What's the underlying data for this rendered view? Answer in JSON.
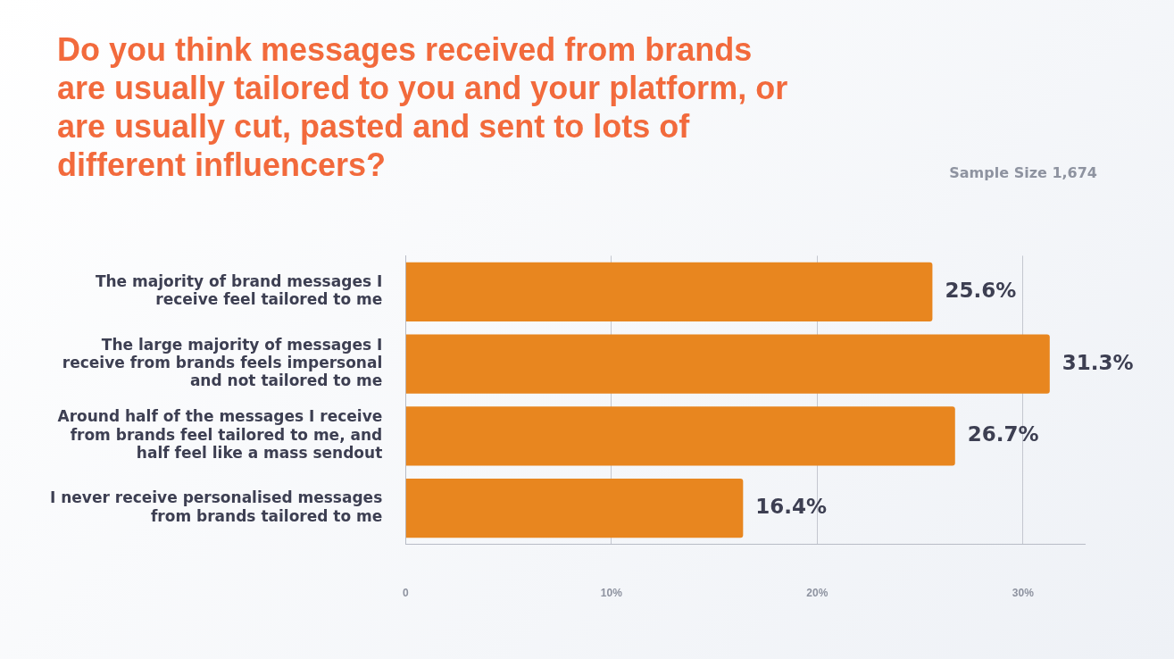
{
  "chart_data": {
    "type": "bar",
    "orientation": "horizontal",
    "title": "Do you think messages received from brands are usually tailored to you and your platform, or are usually cut, pasted and sent to lots of different influencers?",
    "annotations": [
      "Sample Size 1,674"
    ],
    "categories": [
      "The majority of brand messages I receive feel tailored to me",
      "The large majority of messages I receive from brands feels impersonal and not tailored to me",
      "Around half of the messages I receive from brands feel tailored to me, and half feel like a mass sendout",
      "I never receive personalised messages from brands tailored to me"
    ],
    "values": [
      25.6,
      31.3,
      26.7,
      16.4
    ],
    "value_labels": [
      "25.6%",
      "31.3%",
      "26.7%",
      "16.4%"
    ],
    "color": "#e8861f",
    "xlim": [
      0,
      33
    ],
    "xticks": [
      0,
      {
        "value": 10,
        "label": "10%"
      },
      {
        "value": 20,
        "label": "20%"
      },
      {
        "value": 30,
        "label": "30%"
      }
    ],
    "grid": "x"
  }
}
